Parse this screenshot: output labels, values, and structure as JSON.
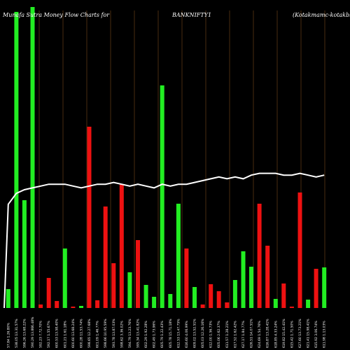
{
  "chart_data": {
    "type": "bar",
    "title": "Munafa Sutra  Money Flow  Charts for",
    "symbol": "BANKNIFTY1",
    "source": "(Kotakmamc-kotakbkett)",
    "colors": {
      "background": "#000000",
      "up": "#22ee22",
      "down": "#ee1111",
      "grid": "#7a4a1a",
      "line": "#ffffff"
    },
    "categories": [
      "57.84 1.26.80%",
      "538.05 13.31.57%",
      "596.26 13.68.22%",
      "590.29 13.866.48%",
      "592.23 7.72.70%",
      "592.17 1.55.67%",
      "600.53 13.58.40%",
      "601.21 1.61.18%",
      "600.60 13.68.24%",
      "600.28 11.53.74%",
      "598.65 12.27.68%",
      "601.09 1.46.77%",
      "598.66 10.95.59%",
      "593.78 13.87.03%",
      "598.62 3.36.02%",
      "594.79 13.23.76%",
      "595.34 13.41.82%",
      "602.29 1.92.28%",
      "602.49 1.73.96%",
      "605.79 1.22.43%",
      "605.78 15.71.18%",
      "612.53 13.47.75%",
      "616.60 4.06.99%",
      "609.02 13.52.51%",
      "605.03 12.26.16%",
      "612.00 1.56.73%",
      "605.06 2.62.37%",
      "611.57 1.28.21%",
      "617.52 1.62.42%",
      "627.17 1.84.77%",
      "626.51 14.07.51%",
      "624.69 1.54.76%",
      "616.87 13.28.41%",
      "618.85 4.33.24%",
      "619.82 15.42.41%",
      "615.42 1.71.50%",
      "627.60 13.73.21%",
      "621.41 15.98.41%",
      "615.92 3.06.74%",
      "611.98 1.13.03%"
    ],
    "values": [
      27,
      423,
      154,
      430,
      5,
      43,
      10,
      85,
      2,
      3,
      259,
      11,
      145,
      64,
      177,
      51,
      97,
      33,
      16,
      318,
      20,
      149,
      85,
      30,
      5,
      34,
      24,
      8,
      40,
      81,
      59,
      149,
      89,
      13,
      35,
      2,
      165,
      12,
      56,
      58
    ],
    "direction": [
      "up",
      "up",
      "up",
      "up",
      "down",
      "down",
      "down",
      "up",
      "down",
      "up",
      "down",
      "down",
      "down",
      "down",
      "down",
      "up",
      "down",
      "up",
      "up",
      "up",
      "up",
      "up",
      "down",
      "up",
      "down",
      "down",
      "down",
      "down",
      "up",
      "up",
      "up",
      "down",
      "down",
      "up",
      "down",
      "down",
      "down",
      "up",
      "down",
      "up"
    ],
    "ylim": [
      0,
      430
    ],
    "flow_line": [
      57,
      63,
      65,
      66,
      67,
      68,
      68,
      68,
      67,
      66,
      67,
      68,
      68,
      69,
      68,
      67,
      68,
      67,
      66,
      68,
      67,
      68,
      68,
      69,
      70,
      71,
      72,
      71,
      72,
      71,
      73,
      74,
      74,
      74,
      73,
      73,
      74,
      73,
      72,
      73
    ],
    "flow_ylim": [
      0,
      100
    ],
    "grid": true
  }
}
